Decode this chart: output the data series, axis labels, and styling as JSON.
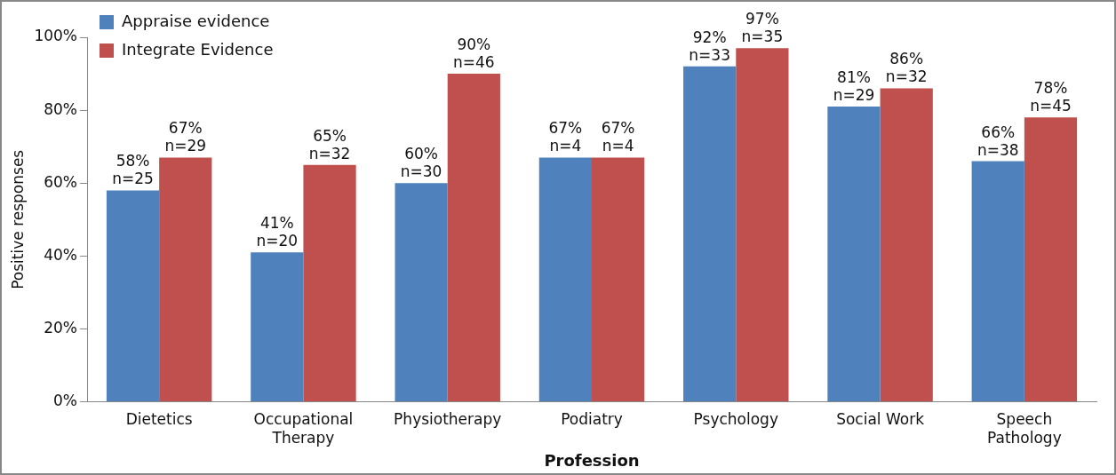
{
  "chart_data": {
    "type": "bar",
    "xlabel": "Profession",
    "ylabel": "Positive responses",
    "categories": [
      "Dietetics",
      "Occupational Therapy",
      "Physiotherapy",
      "Podiatry",
      "Psychology",
      "Social Work",
      "Speech Pathology"
    ],
    "series": [
      {
        "name": "Appraise evidence",
        "color": "#4f81bd",
        "values": [
          58,
          41,
          60,
          67,
          92,
          81,
          66
        ],
        "value_labels": [
          "58%\nn=25",
          "41%\nn=20",
          "60%\nn=30",
          "67%\nn=4",
          "92%\nn=33",
          "81%\nn=29",
          "66%\nn=38"
        ]
      },
      {
        "name": "Integrate Evidence",
        "color": "#c0504d",
        "values": [
          67,
          65,
          90,
          67,
          97,
          86,
          78
        ],
        "value_labels": [
          "67%\nn=29",
          "65%\nn=32",
          "90%\nn=46",
          "67%\nn=4",
          "97%\nn=35",
          "86%\nn=32",
          "78%\nn=45"
        ]
      }
    ],
    "ylim": [
      0,
      100
    ],
    "yticks": [
      {
        "value": 0,
        "label": "0%"
      },
      {
        "value": 20,
        "label": "20%"
      },
      {
        "value": 40,
        "label": "40%"
      },
      {
        "value": 60,
        "label": "60%"
      },
      {
        "value": 80,
        "label": "80%"
      },
      {
        "value": 100,
        "label": "100%"
      }
    ],
    "grid": false,
    "legend": "top left"
  }
}
